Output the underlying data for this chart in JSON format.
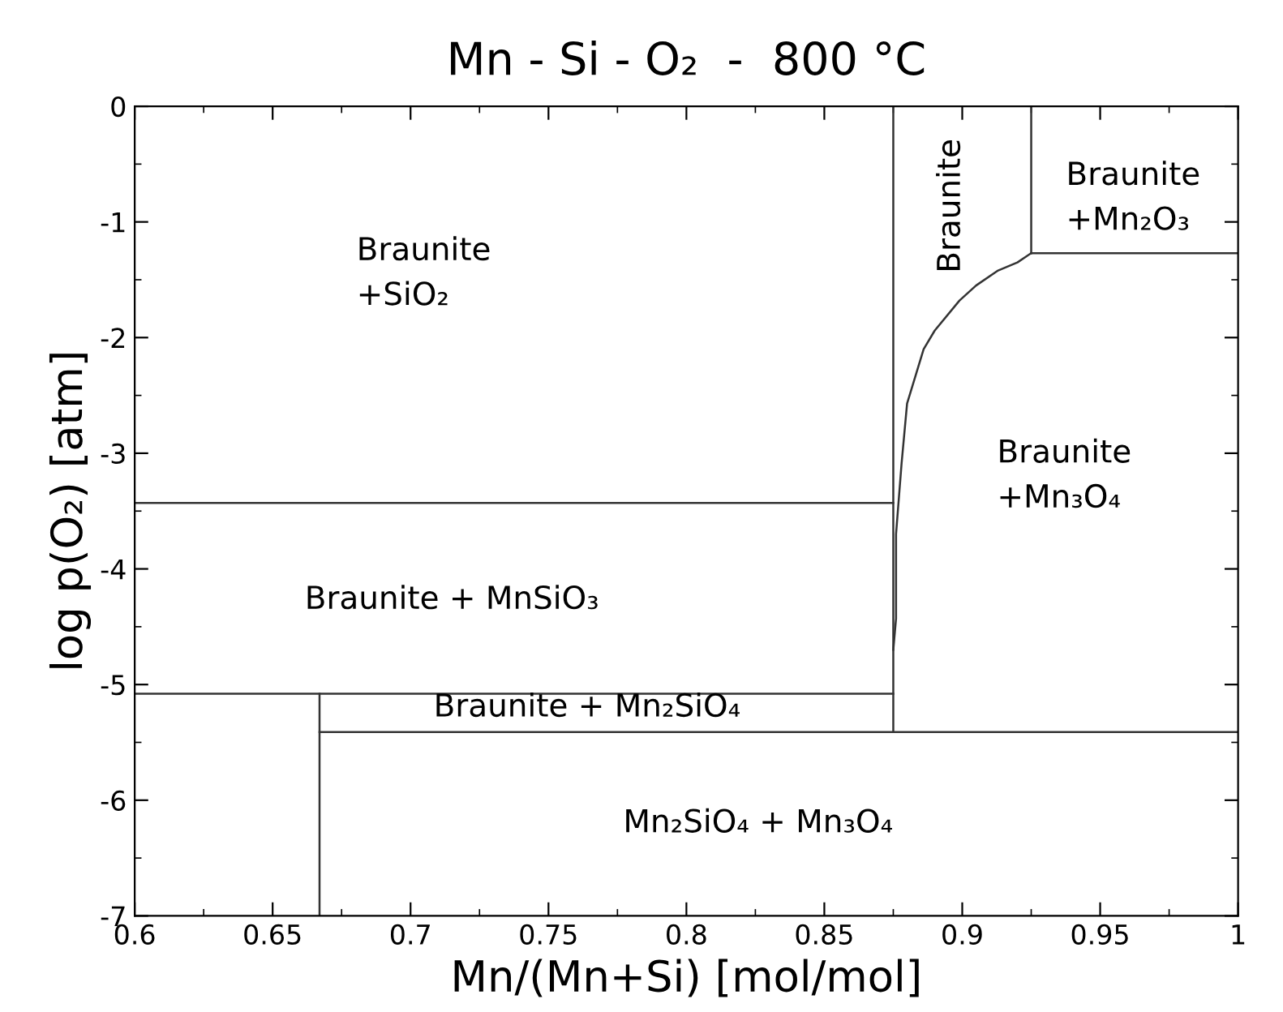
{
  "chart_data": {
    "type": "line",
    "title": "Mn - Si - O₂  -  800 °C",
    "xlabel": "Mn/(Mn+Si) [mol/mol]",
    "ylabel": "log p(O₂) [atm]",
    "xlim": [
      0.6,
      1.0
    ],
    "ylim": [
      -7,
      0
    ],
    "xticks": [
      0.6,
      0.65,
      0.7,
      0.75,
      0.8,
      0.85,
      0.9,
      0.95,
      1
    ],
    "yticks": [
      0,
      -1,
      -2,
      -3,
      -4,
      -5,
      -6,
      -7
    ],
    "grid": false,
    "legend": false,
    "marker": "none",
    "line_style": "solid",
    "series": [
      {
        "color": "#333333",
        "x": [
          0.6,
          0.875
        ],
        "values": [
          -3.43,
          -3.43
        ]
      },
      {
        "color": "#333333",
        "x": [
          0.6,
          0.875
        ],
        "values": [
          -5.08,
          -5.08
        ]
      },
      {
        "color": "#333333",
        "x": [
          0.667,
          0.667
        ],
        "values": [
          -7,
          -5.08
        ]
      },
      {
        "color": "#333333",
        "x": [
          0.667,
          1.0
        ],
        "values": [
          -5.41,
          -5.41
        ]
      },
      {
        "color": "#333333",
        "x": [
          0.875,
          0.875
        ],
        "values": [
          -5.41,
          0
        ]
      },
      {
        "color": "#333333",
        "x": [
          0.875,
          0.876,
          0.876,
          0.878,
          0.88,
          0.886,
          0.89,
          0.899,
          0.905,
          0.913,
          0.92,
          0.925
        ],
        "values": [
          -4.7,
          -4.43,
          -3.7,
          -3.09,
          -2.57,
          -2.1,
          -1.94,
          -1.68,
          -1.55,
          -1.42,
          -1.35,
          -1.27
        ]
      },
      {
        "color": "#333333",
        "x": [
          0.925,
          0.925
        ],
        "values": [
          -1.27,
          0
        ]
      },
      {
        "color": "#333333",
        "x": [
          0.925,
          1.0
        ],
        "values": [
          -1.27,
          -1.27
        ]
      }
    ],
    "annotations": [
      "Braunite\n+SiO₂",
      "Braunite + MnSiO₃",
      "Braunite + Mn₂SiO₄",
      "Mn₂SiO₄ + Mn₃O₄",
      "Braunite",
      "Braunite\n+Mn₂O₃",
      "Braunite\n+Mn₃O₄"
    ]
  }
}
